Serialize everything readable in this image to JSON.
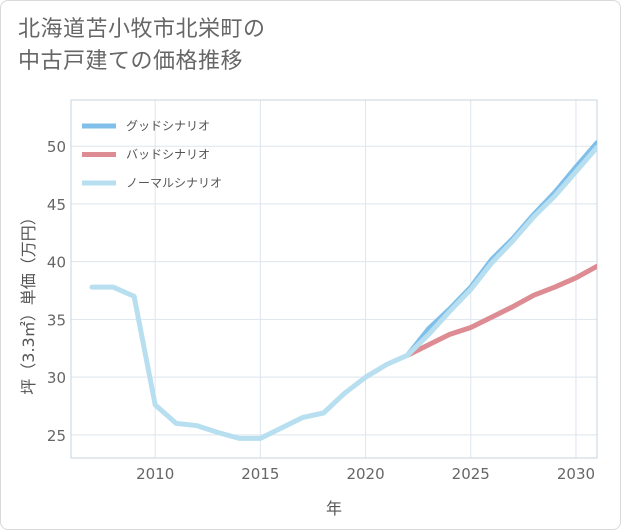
{
  "title_line1": "北海道苫小牧市北栄町の",
  "title_line2": "中古戸建ての価格推移",
  "chart_data": {
    "type": "line",
    "xlabel": "年",
    "ylabel": "坪（3.3㎡）単価（万円）",
    "xlim": [
      2006,
      2031
    ],
    "ylim": [
      23,
      54
    ],
    "xticks": [
      2010,
      2015,
      2020,
      2025,
      2030
    ],
    "yticks": [
      25,
      30,
      35,
      40,
      45,
      50
    ],
    "grid": true,
    "legend_position": "top-left",
    "series": [
      {
        "name": "グッドシナリオ",
        "color": "#7fbfe9",
        "x": [
          2022,
          2023,
          2024,
          2025,
          2026,
          2027,
          2028,
          2029,
          2030,
          2031
        ],
        "y": [
          31.9,
          34.2,
          35.9,
          37.8,
          40.2,
          42.0,
          44.1,
          46.0,
          48.2,
          50.3
        ]
      },
      {
        "name": "バッドシナリオ",
        "color": "#dc8c92",
        "x": [
          2022,
          2023,
          2024,
          2025,
          2026,
          2027,
          2028,
          2029,
          2030,
          2031
        ],
        "y": [
          31.9,
          32.8,
          33.7,
          34.3,
          35.2,
          36.1,
          37.1,
          37.8,
          38.6,
          39.6
        ]
      },
      {
        "name": "ノーマルシナリオ",
        "color": "#b7dff0",
        "x": [
          2007,
          2008,
          2009,
          2010,
          2011,
          2012,
          2013,
          2014,
          2015,
          2016,
          2017,
          2018,
          2019,
          2020,
          2021,
          2022,
          2023,
          2024,
          2025,
          2026,
          2027,
          2028,
          2029,
          2030,
          2031
        ],
        "y": [
          37.8,
          37.8,
          37.0,
          27.6,
          26.0,
          25.8,
          25.2,
          24.7,
          24.7,
          25.6,
          26.5,
          26.9,
          28.6,
          30.0,
          31.1,
          31.9,
          33.7,
          35.7,
          37.6,
          39.9,
          41.8,
          43.9,
          45.7,
          47.8,
          49.9
        ]
      }
    ]
  }
}
